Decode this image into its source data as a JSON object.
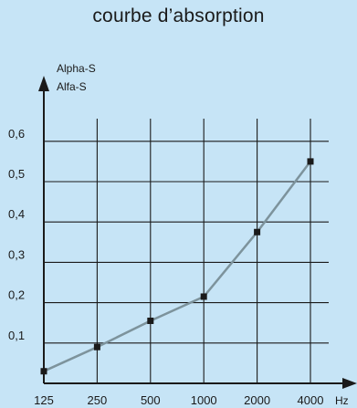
{
  "chart_data": {
    "type": "line",
    "title": "courbe d’absorption",
    "ylabel_lines": [
      "Alpha-S",
      "Alfa-S"
    ],
    "xlabel": "Hz",
    "categories": [
      "125",
      "250",
      "500",
      "1000",
      "2000",
      "4000"
    ],
    "y_ticks": [
      "0,1",
      "0,2",
      "0,3",
      "0,4",
      "0,5",
      "0,6"
    ],
    "ylim": [
      0,
      0.6
    ],
    "grid": true,
    "legend": "none",
    "series": [
      {
        "values": [
          0.03,
          0.09,
          0.155,
          0.215,
          0.375,
          0.55
        ]
      }
    ],
    "colors": {
      "line": "#7d939c",
      "marker": "#1a1a1a",
      "grid": "#1a1a1a",
      "background": "#c6e4f6"
    }
  }
}
